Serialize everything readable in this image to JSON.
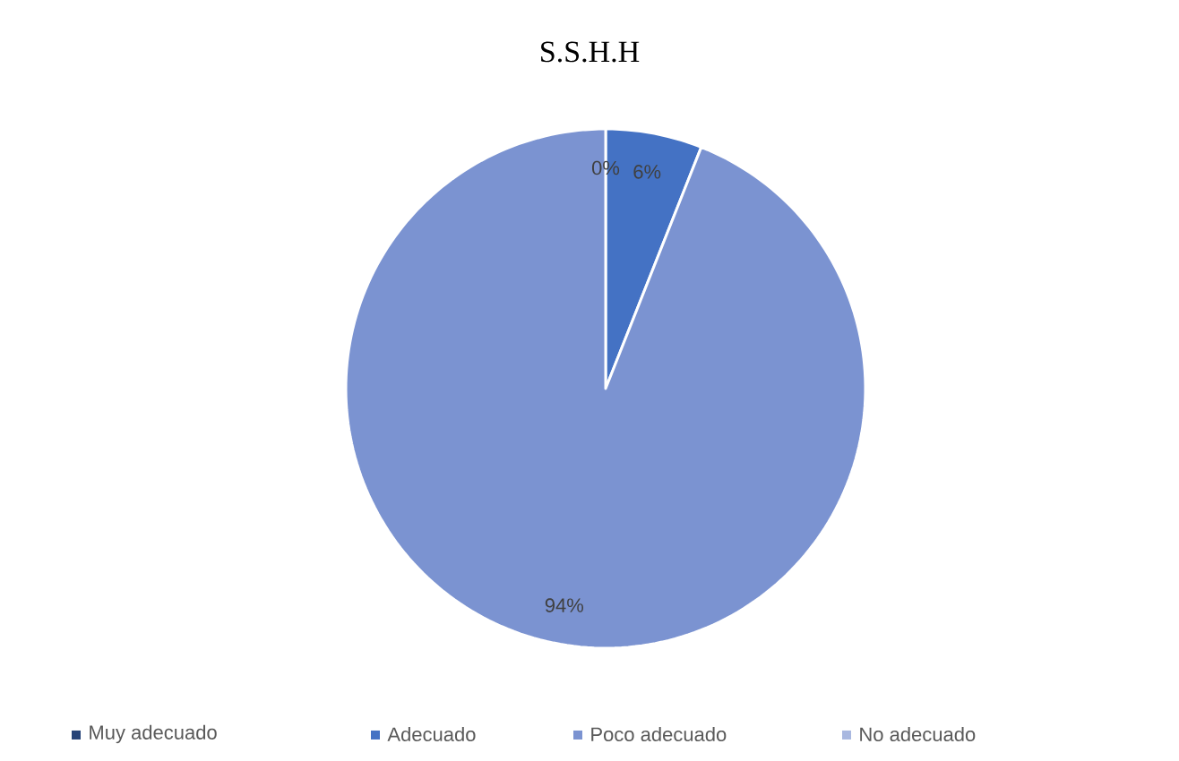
{
  "chart_data": {
    "type": "pie",
    "title": "S.S.H.H",
    "categories": [
      "Muy adecuado",
      "Adecuado",
      "Poco adecuado",
      "No adecuado"
    ],
    "values": [
      0,
      6,
      94,
      0
    ],
    "colors": [
      "#264478",
      "#4472c4",
      "#7b93d1",
      "#a9b8e0"
    ],
    "value_labels": [
      "0%",
      "6%",
      "94%",
      null
    ],
    "legend": "bottom"
  }
}
